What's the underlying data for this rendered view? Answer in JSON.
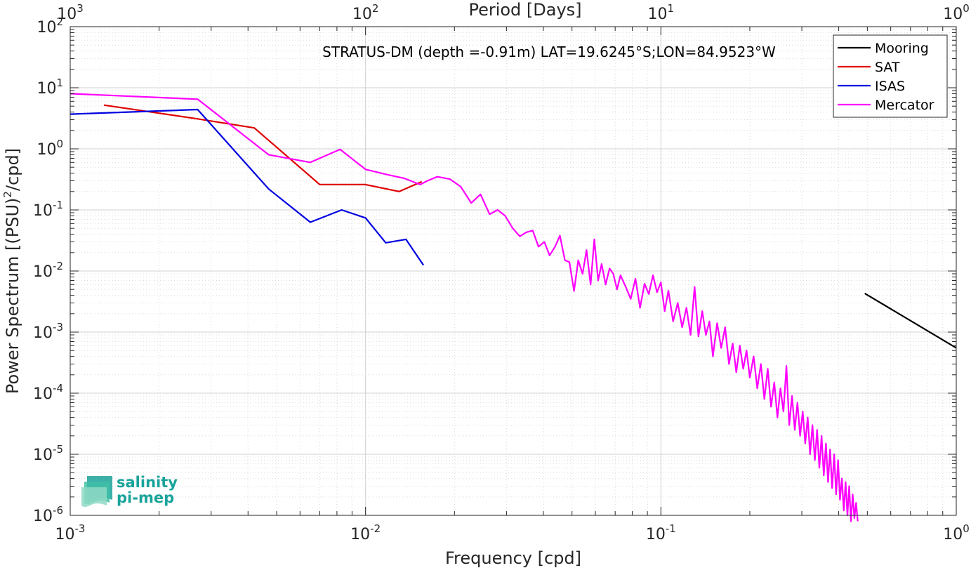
{
  "chart_data": {
    "type": "line",
    "title": "STRATUS-DM (depth =-0.91m) LAT=19.6245°S;LON=84.9523°W",
    "xlabel": "Frequency [cpd]",
    "ylabel": "Power Spectrum [(PSU)^2/cpd]",
    "x2label": "Period [Days]",
    "xscale": "log",
    "yscale": "log",
    "xlim": [
      0.001,
      1
    ],
    "ylim": [
      1e-06,
      100
    ],
    "grid": true,
    "legend_position": "top-right",
    "x_ticks": [
      {
        "base": "10",
        "exp": "-3",
        "value": 0.001
      },
      {
        "base": "10",
        "exp": "-2",
        "value": 0.01
      },
      {
        "base": "10",
        "exp": "-1",
        "value": 0.1
      },
      {
        "base": "10",
        "exp": "0",
        "value": 1
      }
    ],
    "x2_ticks": [
      {
        "base": "10",
        "exp": "3",
        "value": 0.001
      },
      {
        "base": "10",
        "exp": "2",
        "value": 0.01
      },
      {
        "base": "10",
        "exp": "1",
        "value": 0.1
      },
      {
        "base": "10",
        "exp": "0",
        "value": 1
      }
    ],
    "y_ticks": [
      {
        "base": "10",
        "exp": "2",
        "value": 100
      },
      {
        "base": "10",
        "exp": "1",
        "value": 10
      },
      {
        "base": "10",
        "exp": "0",
        "value": 1
      },
      {
        "base": "10",
        "exp": "-1",
        "value": 0.1
      },
      {
        "base": "10",
        "exp": "-2",
        "value": 0.01
      },
      {
        "base": "10",
        "exp": "-3",
        "value": 0.001
      },
      {
        "base": "10",
        "exp": "-4",
        "value": 0.0001
      },
      {
        "base": "10",
        "exp": "-5",
        "value": 1e-05
      },
      {
        "base": "10",
        "exp": "-6",
        "value": 1e-06
      }
    ],
    "series": [
      {
        "name": "Mooring",
        "color": "#000000",
        "x": [
          0.49,
          1.0
        ],
        "y": [
          0.0043,
          0.00055
        ]
      },
      {
        "name": "SAT",
        "color": "#e00000",
        "x": [
          0.0013,
          0.0027,
          0.0042,
          0.007,
          0.01,
          0.013,
          0.0155
        ],
        "y": [
          5.2,
          3.1,
          2.2,
          0.26,
          0.26,
          0.2,
          0.29
        ]
      },
      {
        "name": "ISAS",
        "color": "#0000e0",
        "x": [
          0.001,
          0.0027,
          0.0047,
          0.0065,
          0.0083,
          0.01,
          0.0117,
          0.0137,
          0.0157
        ],
        "y": [
          3.7,
          4.4,
          0.22,
          0.063,
          0.1,
          0.074,
          0.029,
          0.033,
          0.0125
        ]
      },
      {
        "name": "Mercator",
        "color": "#ff00ff",
        "x": [
          0.001,
          0.0027,
          0.0047,
          0.0065,
          0.0082,
          0.01,
          0.0118,
          0.0135,
          0.0153,
          0.0162,
          0.0175,
          0.0193,
          0.021,
          0.0228,
          0.0245,
          0.0263,
          0.028,
          0.0297,
          0.0315,
          0.0333,
          0.035,
          0.0368,
          0.0385,
          0.0403,
          0.042,
          0.0438,
          0.0455,
          0.0473,
          0.049,
          0.0508,
          0.0525,
          0.0543,
          0.056,
          0.0578,
          0.0595,
          0.0613,
          0.063,
          0.065,
          0.067,
          0.069,
          0.071,
          0.073,
          0.076,
          0.079,
          0.082,
          0.085,
          0.088,
          0.091,
          0.094,
          0.097,
          0.1,
          0.103,
          0.106,
          0.11,
          0.114,
          0.118,
          0.122,
          0.126,
          0.13,
          0.134,
          0.138,
          0.142,
          0.146,
          0.15,
          0.155,
          0.16,
          0.165,
          0.17,
          0.175,
          0.18,
          0.185,
          0.19,
          0.195,
          0.2,
          0.206,
          0.212,
          0.218,
          0.224,
          0.23,
          0.236,
          0.242,
          0.248,
          0.254,
          0.26,
          0.266,
          0.272,
          0.278,
          0.284,
          0.29,
          0.296,
          0.302,
          0.308,
          0.314,
          0.32,
          0.326,
          0.332,
          0.338,
          0.344,
          0.35,
          0.356,
          0.362,
          0.368,
          0.374,
          0.38,
          0.386,
          0.392,
          0.398,
          0.404,
          0.41,
          0.416,
          0.422,
          0.428,
          0.434,
          0.44,
          0.446,
          0.452,
          0.458,
          0.464
        ],
        "y": [
          8.0,
          6.5,
          0.8,
          0.6,
          0.98,
          0.46,
          0.38,
          0.33,
          0.26,
          0.3,
          0.35,
          0.32,
          0.24,
          0.13,
          0.18,
          0.085,
          0.1,
          0.08,
          0.05,
          0.037,
          0.043,
          0.046,
          0.025,
          0.03,
          0.018,
          0.025,
          0.038,
          0.015,
          0.014,
          0.0047,
          0.015,
          0.009,
          0.022,
          0.006,
          0.033,
          0.007,
          0.013,
          0.006,
          0.011,
          0.009,
          0.005,
          0.0085,
          0.0055,
          0.0035,
          0.0075,
          0.0025,
          0.0062,
          0.0042,
          0.0085,
          0.0045,
          0.0065,
          0.0022,
          0.0048,
          0.0015,
          0.003,
          0.0012,
          0.0025,
          0.0009,
          0.0055,
          0.00085,
          0.0022,
          0.0009,
          0.0015,
          0.0004,
          0.0014,
          0.00055,
          0.0012,
          0.0003,
          0.00065,
          0.00022,
          0.0006,
          0.00025,
          0.0005,
          0.00018,
          0.0004,
          0.00012,
          0.0003,
          8e-05,
          0.00025,
          6e-05,
          0.00015,
          4e-05,
          0.00012,
          5e-05,
          0.00028,
          3e-05,
          9e-05,
          2.5e-05,
          7e-05,
          2e-05,
          5e-05,
          1.5e-05,
          4e-05,
          1e-05,
          3e-05,
          8e-06,
          2.5e-05,
          6e-06,
          2e-05,
          4.5e-06,
          1.5e-05,
          3.5e-06,
          1.2e-05,
          2.8e-06,
          1e-05,
          2.2e-06,
          8e-06,
          1.8e-06,
          4e-06,
          1.2e-06,
          3.5e-06,
          1e-06,
          3e-06,
          8e-07,
          2.2e-06,
          9e-07,
          1.6e-06,
          8e-07
        ]
      }
    ]
  },
  "logo": {
    "line1": "salinity",
    "line2": "pi-mep",
    "colors": [
      "#1aa39a",
      "#3fbfa6",
      "#8fd9c6"
    ]
  }
}
